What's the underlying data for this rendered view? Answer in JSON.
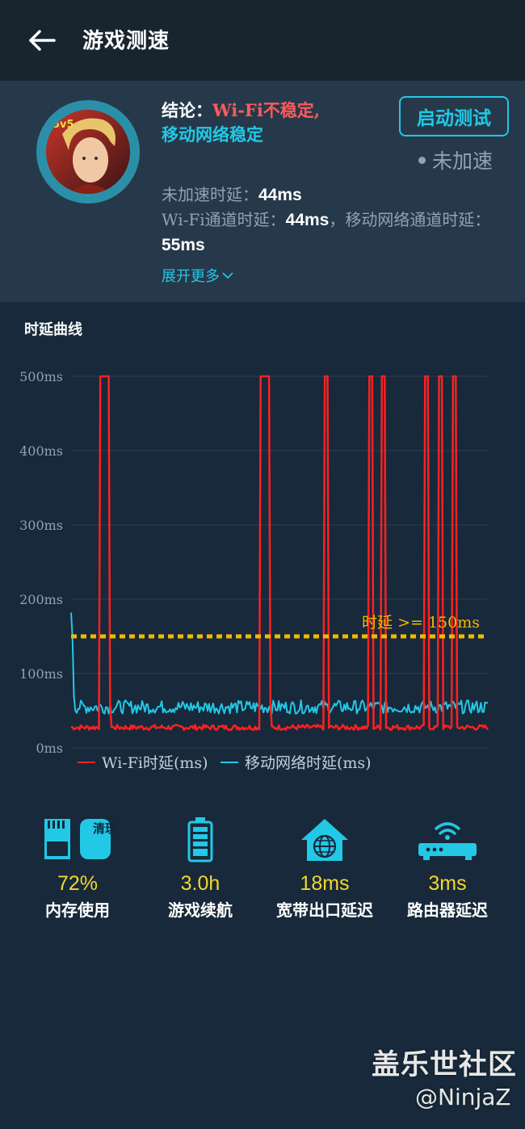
{
  "header": {
    "title": "游戏测速",
    "back_icon": "arrow-left-icon"
  },
  "summary": {
    "conclusion_label": "结论：",
    "conclusion_wifi": "Wi-Fi不稳定,",
    "conclusion_mobile": "移动网络稳定",
    "start_button": "启动测试",
    "accel_status": "未加速",
    "unaccel_delay_label": "未加速时延：",
    "unaccel_delay_value": "44ms",
    "wifi_delay_label": "Wi-Fi通道时延：",
    "wifi_delay_value": "44ms",
    "mobile_delay_label": "，移动网络通道时延：",
    "mobile_delay_value": "55ms",
    "expand_label": "展开更多"
  },
  "chart_section": {
    "title": "时延曲线"
  },
  "chart_data": {
    "type": "line",
    "ylim": [
      0,
      500
    ],
    "yticks": [
      "500ms",
      "400ms",
      "300ms",
      "200ms",
      "100ms",
      "0ms"
    ],
    "threshold": {
      "value": 150,
      "label": "时延 >= 150ms",
      "color": "#f5b800"
    },
    "legend": {
      "position": "bottom"
    },
    "x_count": 300,
    "series": [
      {
        "name": "Wi-Fi时延(ms)",
        "color": "#ff2020",
        "baseline": 28,
        "spikes": [
          {
            "start": 21,
            "end": 28,
            "peak": 500
          },
          {
            "start": 136,
            "end": 143,
            "peak": 500
          },
          {
            "start": 182,
            "end": 184,
            "peak": 500
          },
          {
            "start": 214,
            "end": 216,
            "peak": 500
          },
          {
            "start": 223,
            "end": 225,
            "peak": 500
          },
          {
            "start": 254,
            "end": 256,
            "peak": 500
          },
          {
            "start": 264,
            "end": 266,
            "peak": 500
          },
          {
            "start": 274,
            "end": 276,
            "peak": 500
          }
        ]
      },
      {
        "name": "移动网络时延(ms)",
        "color": "#22c8e6",
        "baseline": 55,
        "start_value": 182
      }
    ]
  },
  "stats": [
    {
      "icon": "memory-card-icon",
      "value": "72%",
      "label": "内存使用",
      "badge": "清理"
    },
    {
      "icon": "battery-icon",
      "value": "3.0h",
      "label": "游戏续航"
    },
    {
      "icon": "broadband-house-icon",
      "value": "18ms",
      "label": "宽带出口延迟"
    },
    {
      "icon": "router-icon",
      "value": "3ms",
      "label": "路由器延迟"
    }
  ],
  "watermark": {
    "line1": "盖乐世社区",
    "line2": "@NinjaZ"
  }
}
